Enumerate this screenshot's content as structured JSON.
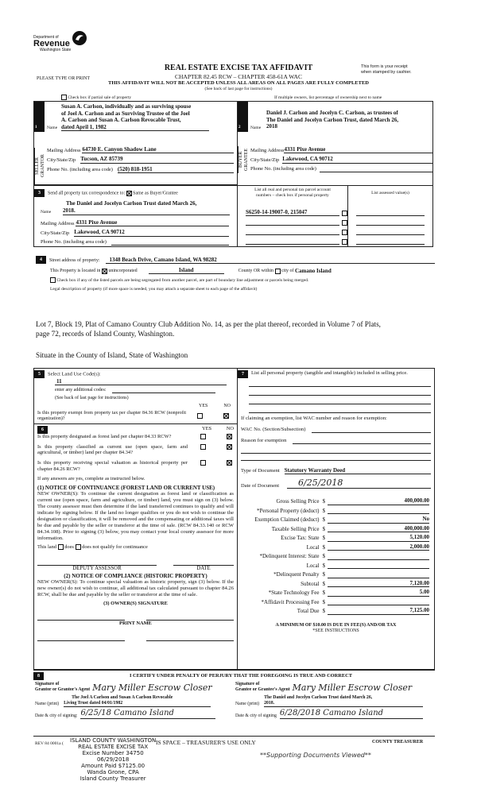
{
  "header": {
    "logo": {
      "line1": "Department of",
      "line2": "Revenue",
      "line3": "Washington State",
      "icon": "dor-swirl-logo"
    },
    "title": "REAL ESTATE EXCISE TAX AFFIDAVIT",
    "chapter": "CHAPTER 82.45 RCW – CHAPTER 458-61A WAC",
    "please": "PLEASE TYPE OR PRINT",
    "receipt_note": [
      "This form is your receipt",
      "when stamped by cashier."
    ],
    "warning": "THIS AFFIDAVIT WILL NOT BE ACCEPTED UNLESS ALL AREAS ON ALL PAGES ARE FULLY COMPLETED",
    "instructions": "(See back of last page for instructions)",
    "partial_sale": {
      "label": "Check box if partial sale of property",
      "checked": false
    },
    "multiple_owners": "If multiple owners, list percentage of ownership next to name"
  },
  "seller": {
    "num": "1",
    "side_label": "SELLER GRANTOR",
    "name_label": "Name",
    "name": [
      "Susan A. Carlson, individually and as surviving spouse",
      "of Joel A. Carlson and as Surviving Trustee of the Joel",
      "A. Carlson and Susan A. Carlson Revocable Trust,",
      "dated April 1, 1982"
    ],
    "mailing_label": "Mailing Address",
    "mailing": "64730 E. Canyon Shadow Lane",
    "city_label": "City/State/Zip",
    "city": "Tucson, AZ 85739",
    "phone_label": "Phone No. (including area code)",
    "phone": "(520) 818-1951"
  },
  "buyer": {
    "num": "2",
    "side_label": "BUYER GRANTEE",
    "name_label": "Name",
    "name": [
      "Daniel J. Carlson and Jocelyn C. Carlson, as trustees of",
      "The Daniel and Jocelyn Carlson Trust, dated March 26,",
      "2018"
    ],
    "mailing_label": "Mailing Address",
    "mailing": "4331 Pixe Avenue",
    "city_label": "City/State/Zip",
    "city": "Lakewood, CA 90712",
    "phone_label": "Phone No. (including area code)",
    "phone": ""
  },
  "correspondence": {
    "num": "3",
    "label": "Send all property tax correspondence to:",
    "same_label": "Same as Buyer/Grantee",
    "same_checked": true,
    "name_label": "Name",
    "name": [
      "The Daniel and Jocelyn Carlson Trust dated March 26,",
      "2018."
    ],
    "mailing_label": "Mailing Address",
    "mailing": "4331 Pixe Avenue",
    "city_label": "City/State/Zip",
    "city": "Lakewood, CA 90712",
    "phone_label": "Phone No. (including area code)",
    "phone": ""
  },
  "parcels": {
    "header": [
      "List all real and personal tax parcel account",
      "numbers – check box if personal property"
    ],
    "assessed_header": "List assessed value(s)",
    "rows": [
      {
        "number": "S6250-14-19007-0, 215047",
        "personal": false,
        "assessed": ""
      },
      {
        "number": "",
        "personal": false,
        "assessed": ""
      },
      {
        "number": "",
        "personal": false,
        "assessed": ""
      },
      {
        "number": "",
        "personal": false,
        "assessed": ""
      }
    ]
  },
  "property": {
    "num": "4",
    "street_label": "Street address of property:",
    "street": "1348 Beach Drive, Camano Island, WA  98282",
    "located_label": "This Property is located in",
    "unincorporated_label": "unincorporated",
    "unincorporated_checked": true,
    "county": "Island",
    "county_label": "County OR  within",
    "city_checked": false,
    "city_label": "city of",
    "city": "Camano Island",
    "segregated_label": "Check box if any of the listed parcels are being segregated from another parcel, are part of boundary line adjustment or parcels being merged.",
    "segregated_checked": false,
    "legal_label": "Legal description of property (if more space is needed, you may attach a separate sheet to each page of the affidavit)",
    "legal_description": [
      "Lot 7, Block 19, Plat of Camano Country Club Addition No. 14, as per the plat thereof, recorded in Volume 7 of Plats,",
      "page 72, records of Island County, Washington."
    ],
    "situate": "Situate in the County of Island, State of Washington"
  },
  "land_use": {
    "num": "5",
    "label": "Select Land Use Code(s):",
    "code": "11",
    "additional_label": "enter any additional codes:",
    "additional": "",
    "instructions": "(See back of last page for instructions)",
    "yes": "YES",
    "no": "NO",
    "exempt_q": "Is this property exempt from property tax per chapter 84.36 RCW (nonprofit organization)?",
    "exempt_answer": "NO"
  },
  "section6": {
    "num": "6",
    "yes": "YES",
    "no": "NO",
    "questions": [
      {
        "text": "Is this property designated as forest land per chapter 84.33 RCW?",
        "answer": "NO"
      },
      {
        "text": "Is this property classified as current use (open space, farm and agricultural, or timber) land per chapter 84.34?",
        "answer": "NO"
      },
      {
        "text": "Is this property receiving special valuation as historical property per chapter 84.26 RCW?",
        "answer": "NO"
      }
    ],
    "if_yes": "If any answers are yes, complete as instructed below.",
    "notice1_title": "(1) NOTICE OF CONTINUANCE (FOREST LAND OR CURRENT USE)",
    "notice1_text": "NEW OWNER(S): To continue the current designation as forest land or classification as current use (open space, farm and agriculture, or timber) land, you must sign on (3) below.  The county assessor must then determine if the land transferred continues to qualify and will indicate by signing below.  If the land no longer qualifies or you do not wish to continue the designation or classification, it will be removed and the compensating or additional taxes will be due and payable by the seller or transferor at the time of sale.  (RCW 84.33.140 or RCW 84.34.108). Prior to signing (3) below, you may contact your local county assessor for more information.",
    "land_label": "This land",
    "does_label": "does",
    "does_not_label": "does not qualify for continuance",
    "deputy_label": "DEPUTY ASSESSOR",
    "date_label": "DATE",
    "notice2_title": "(2) NOTICE OF COMPLIANCE (HISTORIC PROPERTY)",
    "notice2_text": "NEW OWNER(S): To continue special valuation as historic property, sign (3) below.  If the new owner(s) do not wish to continue, all additional tax calculated pursuant to chapter 84.26 RCW, shall be due and payable by the seller or transferor at the time of sale.",
    "owner_sig_label": "(3)  OWNER(S) SIGNATURE",
    "print_name_label": "PRINT NAME"
  },
  "section7": {
    "num": "7",
    "personal_label": "List all personal property (tangible and intangible) included in selling price.",
    "exemption_label": "If claiming an exemption, list WAC number and reason for exemption:",
    "wac_label": "WAC No. (Section/Subsection)",
    "wac": "",
    "reason_label": "Reason for exemption",
    "reason": "",
    "doc_type_label": "Type of Document",
    "doc_type": "Statutory Warranty Deed",
    "doc_date_label": "Date of Document",
    "doc_date": "6/25/2018",
    "tax_rows": [
      {
        "label": "Gross Selling Price",
        "value": "400,000.00"
      },
      {
        "label": "*Personal Property (deduct)",
        "value": ""
      },
      {
        "label": "Exemption Claimed (deduct)",
        "value": "No"
      },
      {
        "label": "Taxable Selling Price",
        "value": "400,000.00"
      },
      {
        "label": "Excise Tax:  State",
        "value": "5,120.00"
      },
      {
        "label": "Local",
        "value": "2,000.00"
      },
      {
        "label": "*Delinquent Interest:  State",
        "value": ""
      },
      {
        "label": "Local",
        "value": ""
      },
      {
        "label": "*Delinquent Penalty",
        "value": ""
      },
      {
        "label": "Subtotal",
        "value": "7,120.00"
      },
      {
        "label": "*State Technology Fee",
        "value": "5.00"
      },
      {
        "label": "*Affidavit Processing Fee",
        "value": ""
      },
      {
        "label": "Total Due",
        "value": "7,125.00"
      }
    ],
    "currency": "$",
    "minimum": "A MINIMUM OF $10.00 IS DUE IN FEE(S) AND/OR TAX",
    "see_instructions": "*SEE INSTRUCTIONS"
  },
  "section8": {
    "num": "8",
    "certify": "I CERTIFY UNDER PENALTY OF PERJURY THAT THE FOREGOING IS TRUE AND CORRECT",
    "grantor_sig_label": [
      "Signature of",
      "Grantor or Grantor's Agent"
    ],
    "grantor_signature": "Mary Miller Escrow Closer",
    "grantee_sig_label": [
      "Signature of",
      "Grantee or Grantee's Agent"
    ],
    "grantee_signature": "Mary Miller Escrow Closer",
    "name_print_label": "Name (print)",
    "grantor_name": [
      "The Joel A Carlson and Susan A Carlson Revocable",
      "Living Trust dated 04/01/1982"
    ],
    "grantee_name": [
      "The Daniel and Jocelyn Carlson Trust dated March 26,",
      "2018."
    ],
    "grantor_date_label": "Date & city of signing:",
    "grantor_date": "6/25/18 Camano Island",
    "grantee_date_label": "Date & city of signing",
    "grantee_date": "6/28/2018 Camano Island"
  },
  "footer": {
    "rev": "REV 84 0001a (",
    "treasurer_use": "IS SPACE – TREASURER'S USE ONLY",
    "county_treasurer": "COUNTY TREASURER",
    "stamp": [
      "ISLAND COUNTY WASHINGTON",
      "REAL ESTATE EXCISE TAX",
      "Excise Number 34750",
      "06/29/2018",
      "Amount Paid $7125.00",
      "Wanda Grone, CPA",
      "Island County Treasurer"
    ],
    "supporting": "**Supporting Documents Viewed**"
  }
}
